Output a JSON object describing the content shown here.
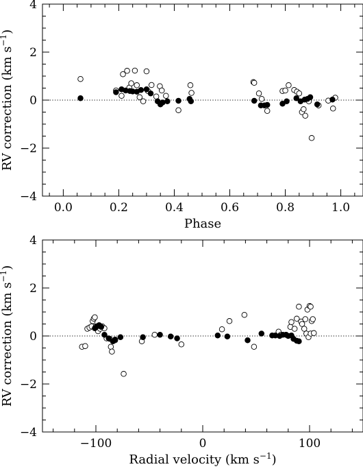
{
  "chart_data": [
    {
      "type": "scatter",
      "xlabel": "Phase",
      "ylabel_main": "RV correction (km s",
      "ylabel_sup": "−1",
      "ylabel_close": ")",
      "xlim": [
        -0.075,
        1.08
      ],
      "ylim": [
        -4,
        4
      ],
      "x_ticks": [
        0.0,
        0.2,
        0.4,
        0.6,
        0.8,
        1.0
      ],
      "x_tick_labels": [
        "0.0",
        "0.2",
        "0.4",
        "0.6",
        "0.8",
        "1.0"
      ],
      "y_ticks": [
        -4,
        -2,
        0,
        2,
        4
      ],
      "y_tick_labels": [
        "−4",
        "−2",
        "0",
        "2",
        "4"
      ],
      "zero_line": true,
      "series": [
        {
          "marker": "filled",
          "points": [
            [
              0.062,
              0.08
            ],
            [
              0.19,
              0.33
            ],
            [
              0.21,
              0.45
            ],
            [
              0.225,
              0.4
            ],
            [
              0.24,
              0.38
            ],
            [
              0.25,
              0.36
            ],
            [
              0.265,
              0.35
            ],
            [
              0.28,
              0.42
            ],
            [
              0.3,
              0.45
            ],
            [
              0.315,
              0.28
            ],
            [
              0.34,
              -0.05
            ],
            [
              0.35,
              -0.18
            ],
            [
              0.358,
              -0.1
            ],
            [
              0.375,
              -0.05
            ],
            [
              0.415,
              -0.03
            ],
            [
              0.455,
              0.05
            ],
            [
              0.46,
              -0.05
            ],
            [
              0.688,
              -0.03
            ],
            [
              0.712,
              -0.22
            ],
            [
              0.725,
              -0.22
            ],
            [
              0.735,
              -0.2
            ],
            [
              0.79,
              -0.15
            ],
            [
              0.805,
              -0.05
            ],
            [
              0.84,
              0.08
            ],
            [
              0.855,
              -0.05
            ],
            [
              0.87,
              0.02
            ],
            [
              0.88,
              0.05
            ],
            [
              0.89,
              0.12
            ],
            [
              0.915,
              -0.18
            ],
            [
              0.97,
              0.02
            ]
          ]
        },
        {
          "marker": "open",
          "points": [
            [
              0.062,
              0.88
            ],
            [
              0.19,
              0.4
            ],
            [
              0.21,
              0.18
            ],
            [
              0.215,
              1.08
            ],
            [
              0.23,
              1.22
            ],
            [
              0.238,
              0.52
            ],
            [
              0.245,
              0.7
            ],
            [
              0.258,
              1.23
            ],
            [
              0.265,
              0.62
            ],
            [
              0.275,
              0.12
            ],
            [
              0.288,
              -0.05
            ],
            [
              0.3,
              1.2
            ],
            [
              0.305,
              0.38
            ],
            [
              0.318,
              0.63
            ],
            [
              0.335,
              0.15
            ],
            [
              0.348,
              0.58
            ],
            [
              0.355,
              0.4
            ],
            [
              0.37,
              0.18
            ],
            [
              0.415,
              -0.42
            ],
            [
              0.458,
              0.62
            ],
            [
              0.462,
              0.3
            ],
            [
              0.685,
              0.75
            ],
            [
              0.688,
              0.72
            ],
            [
              0.705,
              0.28
            ],
            [
              0.715,
              0.05
            ],
            [
              0.735,
              -0.45
            ],
            [
              0.79,
              0.38
            ],
            [
              0.8,
              0.4
            ],
            [
              0.812,
              0.62
            ],
            [
              0.832,
              0.42
            ],
            [
              0.842,
              0.35
            ],
            [
              0.85,
              0.28
            ],
            [
              0.86,
              -0.5
            ],
            [
              0.866,
              -0.38
            ],
            [
              0.872,
              -0.65
            ],
            [
              0.885,
              -0.05
            ],
            [
              0.895,
              -1.58
            ],
            [
              0.92,
              -0.22
            ],
            [
              0.955,
              -0.02
            ],
            [
              0.972,
              -0.35
            ],
            [
              0.98,
              0.1
            ]
          ]
        }
      ]
    },
    {
      "type": "scatter",
      "xlabel_main": "Radial velocity (km s",
      "xlabel_sup": "−1",
      "xlabel_close": ")",
      "ylabel_main": "RV correction (km s",
      "ylabel_sup": "−1",
      "ylabel_close": ")",
      "xlim": [
        -150,
        150
      ],
      "ylim": [
        -4,
        4
      ],
      "x_ticks": [
        -100,
        0,
        100
      ],
      "x_tick_labels": [
        "−100",
        "0",
        "100"
      ],
      "y_ticks": [
        -4,
        -2,
        0,
        2,
        4
      ],
      "y_tick_labels": [
        "−4",
        "−2",
        "0",
        "2",
        "4"
      ],
      "zero_line": true,
      "series": [
        {
          "marker": "filled",
          "points": [
            [
              -101,
              0.32
            ],
            [
              -99,
              0.4
            ],
            [
              -97,
              0.45
            ],
            [
              -95,
              0.38
            ],
            [
              -92,
              0.05
            ],
            [
              -88,
              -0.1
            ],
            [
              -84,
              -0.22
            ],
            [
              -82,
              -0.15
            ],
            [
              -77,
              -0.05
            ],
            [
              -56,
              -0.05
            ],
            [
              -40,
              0.05
            ],
            [
              -30,
              -0.02
            ],
            [
              -24,
              -0.1
            ],
            [
              14,
              0.02
            ],
            [
              23,
              -0.02
            ],
            [
              42,
              -0.18
            ],
            [
              55,
              0.1
            ],
            [
              65,
              0.02
            ],
            [
              68,
              0.02
            ],
            [
              72,
              0.0
            ],
            [
              75,
              0.05
            ],
            [
              78,
              0.05
            ],
            [
              80,
              0.0
            ],
            [
              83,
              0.02
            ],
            [
              85,
              -0.12
            ],
            [
              88,
              -0.2
            ],
            [
              90,
              -0.22
            ]
          ]
        },
        {
          "marker": "open",
          "points": [
            [
              -113,
              -0.45
            ],
            [
              -110,
              -0.42
            ],
            [
              -108,
              0.3
            ],
            [
              -106,
              0.35
            ],
            [
              -104,
              0.4
            ],
            [
              -103,
              0.62
            ],
            [
              -102,
              0.72
            ],
            [
              -101,
              0.78
            ],
            [
              -100,
              0.4
            ],
            [
              -98,
              0.2
            ],
            [
              -96,
              0.3
            ],
            [
              -94,
              0.4
            ],
            [
              -92,
              0.32
            ],
            [
              -90,
              -0.1
            ],
            [
              -87,
              -0.12
            ],
            [
              -86,
              -0.45
            ],
            [
              -85,
              -0.65
            ],
            [
              -82,
              -0.18
            ],
            [
              -74,
              -1.58
            ],
            [
              -57,
              -0.22
            ],
            [
              -45,
              0.05
            ],
            [
              -20,
              -0.35
            ],
            [
              18,
              0.28
            ],
            [
              25,
              0.62
            ],
            [
              39,
              0.88
            ],
            [
              48,
              -0.45
            ],
            [
              71,
              0.18
            ],
            [
              73,
              0.05
            ],
            [
              78,
              0.05
            ],
            [
              82,
              0.38
            ],
            [
              83,
              0.58
            ],
            [
              86,
              0.3
            ],
            [
              88,
              0.72
            ],
            [
              90,
              1.22
            ],
            [
              92,
              0.6
            ],
            [
              93,
              0.5
            ],
            [
              95,
              0.3
            ],
            [
              96,
              0.7
            ],
            [
              97,
              0.1
            ],
            [
              98,
              1.1
            ],
            [
              99,
              -0.05
            ],
            [
              100,
              1.25
            ],
            [
              101,
              1.22
            ],
            [
              101,
              0.1
            ],
            [
              102,
              0.62
            ],
            [
              103,
              0.7
            ],
            [
              104,
              0.12
            ]
          ]
        }
      ]
    }
  ]
}
